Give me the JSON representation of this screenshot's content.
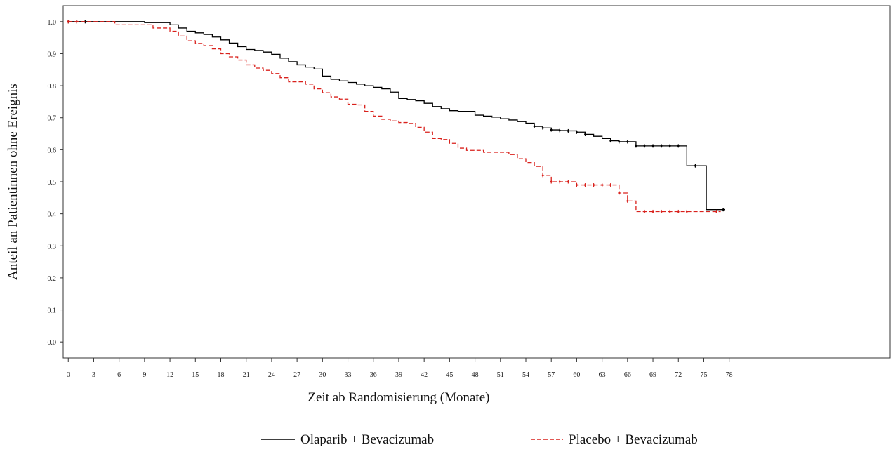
{
  "chart_data": {
    "type": "line",
    "title": "",
    "xlabel": "Zeit ab Randomisierung (Monate)",
    "ylabel": "Anteil an Patientinnen ohne Ereignis",
    "xlim": [
      -0.6,
      97
    ],
    "ylim": [
      -0.05,
      1.05
    ],
    "xticks": [
      0,
      3,
      6,
      9,
      12,
      15,
      18,
      21,
      24,
      27,
      30,
      33,
      36,
      39,
      42,
      45,
      48,
      51,
      54,
      57,
      60,
      63,
      66,
      69,
      72,
      75,
      78
    ],
    "yticks": [
      "0.0",
      "0.1",
      "0.2",
      "0.3",
      "0.4",
      "0.5",
      "0.6",
      "0.7",
      "0.8",
      "0.9",
      "1.0"
    ],
    "grid": false,
    "legend_position": "bottom",
    "series": [
      {
        "name": "Olaparib + Bevacizumab",
        "color": "#000000",
        "dash": "solid",
        "steps": [
          [
            0,
            1.0
          ],
          [
            9,
            0.997
          ],
          [
            12,
            0.99
          ],
          [
            13,
            0.98
          ],
          [
            14,
            0.97
          ],
          [
            15,
            0.965
          ],
          [
            16,
            0.96
          ],
          [
            17,
            0.952
          ],
          [
            18,
            0.943
          ],
          [
            19,
            0.933
          ],
          [
            20,
            0.922
          ],
          [
            21,
            0.913
          ],
          [
            22,
            0.91
          ],
          [
            23,
            0.905
          ],
          [
            24,
            0.898
          ],
          [
            25,
            0.886
          ],
          [
            26,
            0.875
          ],
          [
            27,
            0.865
          ],
          [
            28,
            0.858
          ],
          [
            29,
            0.852
          ],
          [
            30,
            0.83
          ],
          [
            31,
            0.82
          ],
          [
            32,
            0.815
          ],
          [
            33,
            0.81
          ],
          [
            34,
            0.805
          ],
          [
            35,
            0.8
          ],
          [
            36,
            0.795
          ],
          [
            37,
            0.79
          ],
          [
            38,
            0.78
          ],
          [
            39,
            0.76
          ],
          [
            40,
            0.757
          ],
          [
            41,
            0.753
          ],
          [
            42,
            0.745
          ],
          [
            43,
            0.735
          ],
          [
            44,
            0.728
          ],
          [
            45,
            0.722
          ],
          [
            46,
            0.72
          ],
          [
            48,
            0.708
          ],
          [
            49,
            0.705
          ],
          [
            50,
            0.702
          ],
          [
            51,
            0.697
          ],
          [
            52,
            0.693
          ],
          [
            53,
            0.688
          ],
          [
            54,
            0.683
          ],
          [
            55,
            0.673
          ],
          [
            56,
            0.668
          ],
          [
            57,
            0.662
          ],
          [
            58,
            0.66
          ],
          [
            59,
            0.659
          ],
          [
            60,
            0.655
          ],
          [
            61,
            0.648
          ],
          [
            62,
            0.642
          ],
          [
            63,
            0.635
          ],
          [
            64,
            0.628
          ],
          [
            65,
            0.625
          ],
          [
            67,
            0.612
          ],
          [
            73,
            0.55
          ],
          [
            75.3,
            0.413
          ]
        ],
        "end": 77.5,
        "censor": [
          0,
          1,
          2,
          55,
          56,
          57,
          58,
          59,
          60,
          61,
          64,
          65,
          66,
          67,
          68,
          69,
          70,
          71,
          72,
          74,
          77.3
        ]
      },
      {
        "name": "Placebo + Bevacizumab",
        "color": "#d9211c",
        "dash": "dashed",
        "steps": [
          [
            0,
            1.0
          ],
          [
            5.5,
            0.99
          ],
          [
            10,
            0.98
          ],
          [
            12,
            0.97
          ],
          [
            13,
            0.955
          ],
          [
            14,
            0.94
          ],
          [
            15,
            0.932
          ],
          [
            16,
            0.925
          ],
          [
            17,
            0.915
          ],
          [
            18,
            0.9
          ],
          [
            19,
            0.89
          ],
          [
            20,
            0.88
          ],
          [
            21,
            0.865
          ],
          [
            22,
            0.855
          ],
          [
            23,
            0.848
          ],
          [
            24,
            0.838
          ],
          [
            25,
            0.825
          ],
          [
            26,
            0.812
          ],
          [
            28,
            0.805
          ],
          [
            29,
            0.79
          ],
          [
            30,
            0.778
          ],
          [
            31,
            0.765
          ],
          [
            32,
            0.758
          ],
          [
            33,
            0.742
          ],
          [
            34,
            0.74
          ],
          [
            35,
            0.72
          ],
          [
            36,
            0.705
          ],
          [
            37,
            0.695
          ],
          [
            38,
            0.69
          ],
          [
            39,
            0.685
          ],
          [
            40,
            0.682
          ],
          [
            41,
            0.67
          ],
          [
            42,
            0.655
          ],
          [
            43,
            0.635
          ],
          [
            44,
            0.632
          ],
          [
            45,
            0.62
          ],
          [
            46,
            0.605
          ],
          [
            47,
            0.598
          ],
          [
            49,
            0.592
          ],
          [
            52,
            0.585
          ],
          [
            53,
            0.572
          ],
          [
            54,
            0.56
          ],
          [
            55,
            0.548
          ],
          [
            56,
            0.52
          ],
          [
            57,
            0.5
          ],
          [
            60,
            0.49
          ],
          [
            65,
            0.465
          ],
          [
            66,
            0.44
          ],
          [
            67,
            0.407
          ]
        ],
        "end": 77,
        "censor": [
          0,
          1,
          56,
          57,
          58,
          59,
          60,
          61,
          62,
          63,
          64,
          65,
          66,
          68,
          69,
          70,
          71,
          72,
          73,
          76.5
        ]
      }
    ]
  }
}
